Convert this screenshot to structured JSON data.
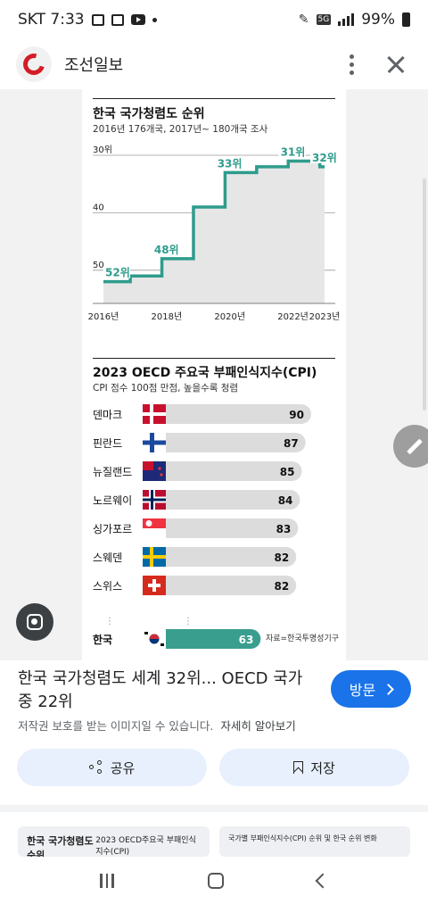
{
  "status_bar": {
    "carrier_time": "SKT 7:33",
    "network_badge": "5G",
    "battery": "99%"
  },
  "header": {
    "site_name": "조선일보"
  },
  "infographic": {
    "rank_title": "한국 국가청렴도 순위",
    "rank_subtitle": "2016년 176개국, 2017년~ 180개국 조사",
    "cpi_title": "2023 OECD 주요국 부패인식지수(CPI)",
    "cpi_subtitle": "CPI 점수 100점 만점, 높을수록 청렴",
    "source": "자료=한국투명성기구"
  },
  "chart_data": [
    {
      "type": "line",
      "title": "한국 국가청렴도 순위",
      "subtitle": "2016년 176개국, 2017년~ 180개국 조사",
      "x": [
        2016,
        2017,
        2018,
        2019,
        2020,
        2021,
        2022,
        2023
      ],
      "x_tick_labels": [
        "2016년",
        "2018년",
        "2020년",
        "2022년",
        "2023년"
      ],
      "y_tick_labels": [
        "30위",
        "40",
        "50"
      ],
      "series": [
        {
          "values": [
            52,
            51,
            48,
            39,
            33,
            32,
            31,
            32
          ]
        }
      ],
      "annotations": [
        {
          "x": 2016,
          "text": "52위"
        },
        {
          "x": 2018,
          "text": "48위"
        },
        {
          "x": 2020,
          "text": "33위"
        },
        {
          "x": 2022,
          "text": "31위"
        },
        {
          "x": 2023,
          "text": "32위"
        }
      ],
      "ylim": [
        30,
        55
      ],
      "y_inverted": true,
      "grid": true,
      "line_color": "#2e9c8c",
      "fill_color": "#e6e6e6"
    },
    {
      "type": "bar",
      "orientation": "horizontal",
      "title": "2023 OECD 주요국 부패인식지수(CPI)",
      "subtitle": "CPI 점수 100점 만점, 높을수록 청렴",
      "categories": [
        "덴마크",
        "핀란드",
        "뉴질랜드",
        "노르웨이",
        "싱가포르",
        "스웨덴",
        "스위스",
        "한국"
      ],
      "values": [
        90,
        87,
        85,
        84,
        83,
        82,
        82,
        63
      ],
      "flags": [
        "denmark-flag-icon",
        "finland-flag-icon",
        "new-zealand-flag-icon",
        "norway-flag-icon",
        "singapore-flag-icon",
        "sweden-flag-icon",
        "switzerland-flag-icon",
        "korea-flag-icon"
      ],
      "bar_color": "#dcdcdc",
      "highlight_color": "#3a9e8e",
      "highlight": "한국",
      "xlim": [
        0,
        100
      ]
    }
  ],
  "result": {
    "title": "한국 국가청렴도 세계 32위... OECD 국가 중 22위",
    "visit_label": "방문",
    "copyright": "저작권 보호를 받는 이미지일 수 있습니다.",
    "learn_more": "자세히 알아보기",
    "share_label": "공유",
    "save_label": "저장"
  },
  "related": {
    "item1_title": "한국 국가청렴도 순위",
    "item1_side": "2023 OECD주요국 부패인식지수(CPI)",
    "item2_title": "국가별 부패인식지수(CPI) 순위 및 한국 순위 변화"
  }
}
